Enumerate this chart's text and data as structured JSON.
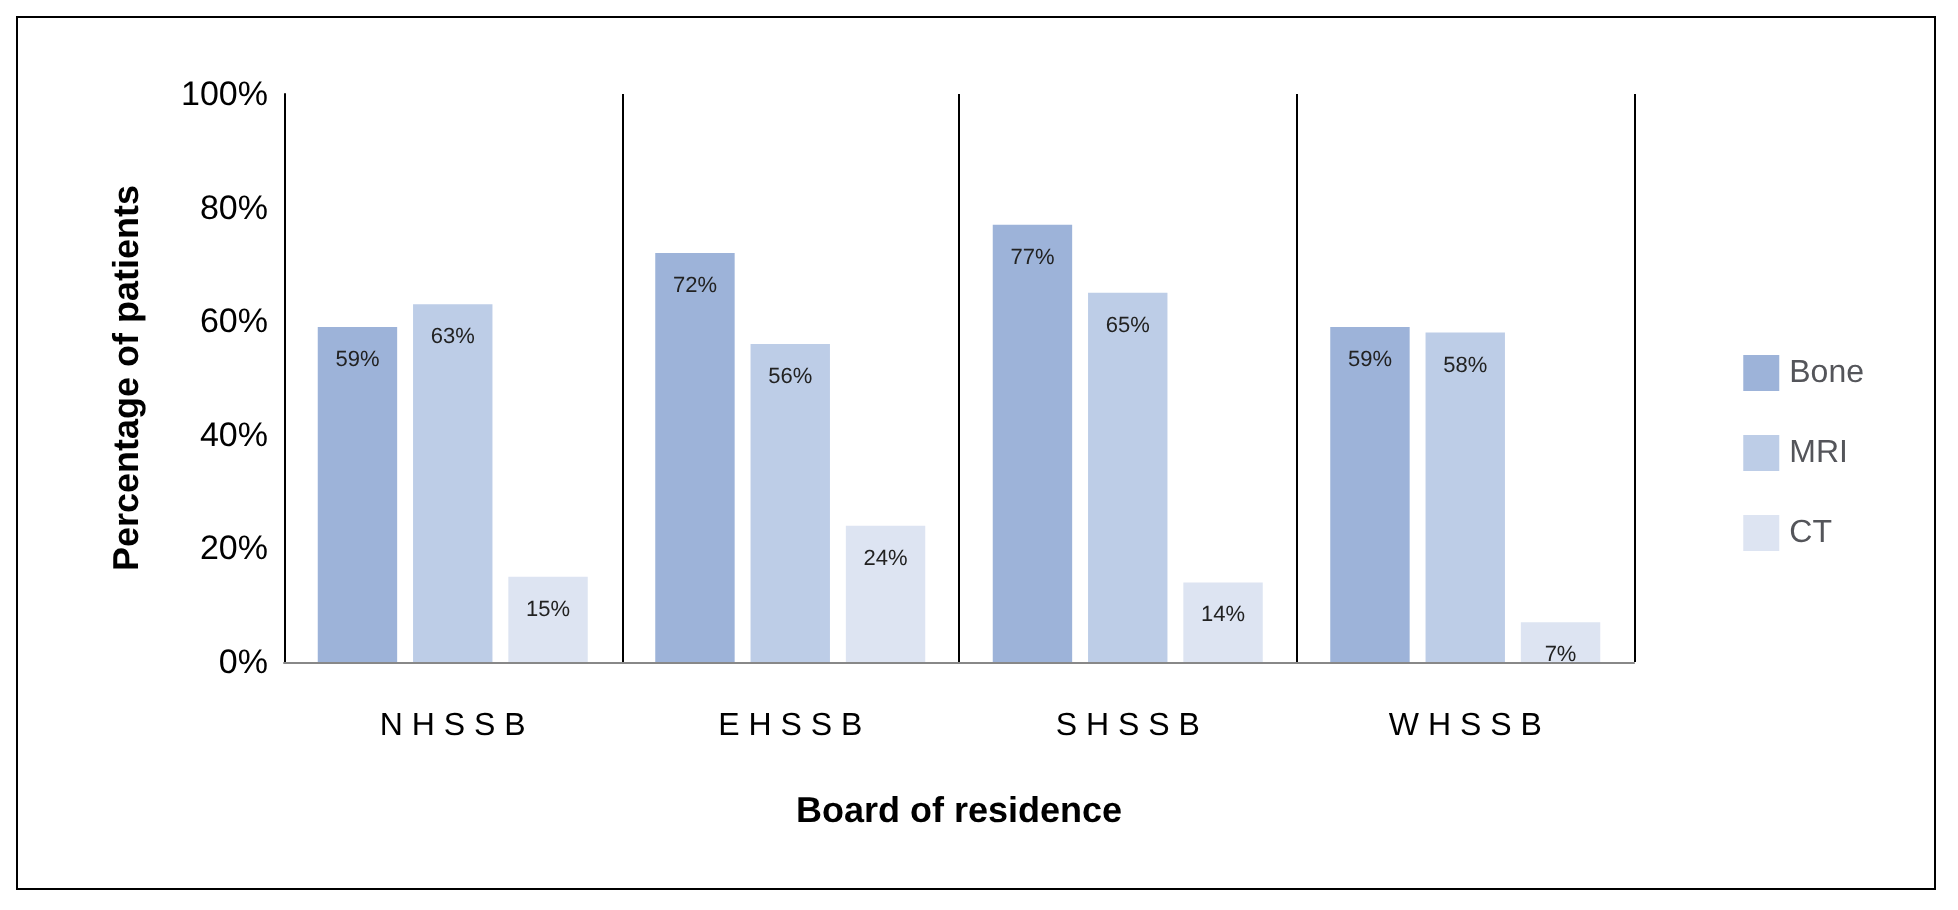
{
  "chart_data": {
    "type": "bar",
    "xlabel": "Board of residence",
    "ylabel": "Percentage of patients",
    "categories": [
      "N H S S B",
      "E H S S B",
      "S H S S B",
      "W H S S B"
    ],
    "series": [
      {
        "name": "Bone",
        "color": "#9db3d9",
        "values": [
          59,
          72,
          77,
          59
        ],
        "value_labels": [
          "59%",
          "72%",
          "77%",
          "59%"
        ]
      },
      {
        "name": "MRI",
        "color": "#bdcde7",
        "values": [
          63,
          56,
          65,
          58
        ],
        "value_labels": [
          "63%",
          "56%",
          "65%",
          "58%"
        ]
      },
      {
        "name": "CT",
        "color": "#dde4f2",
        "values": [
          15,
          24,
          14,
          7
        ],
        "value_labels": [
          "15%",
          "24%",
          "14%",
          "7%"
        ]
      }
    ],
    "ylim": [
      0,
      100
    ],
    "yticks": [
      {
        "value": 0,
        "label": "0%"
      },
      {
        "value": 20,
        "label": "20%"
      },
      {
        "value": 40,
        "label": "40%"
      },
      {
        "value": 60,
        "label": "60%"
      },
      {
        "value": 80,
        "label": "80%"
      },
      {
        "value": 100,
        "label": "100%"
      }
    ],
    "grid": "x",
    "legend": "right"
  }
}
